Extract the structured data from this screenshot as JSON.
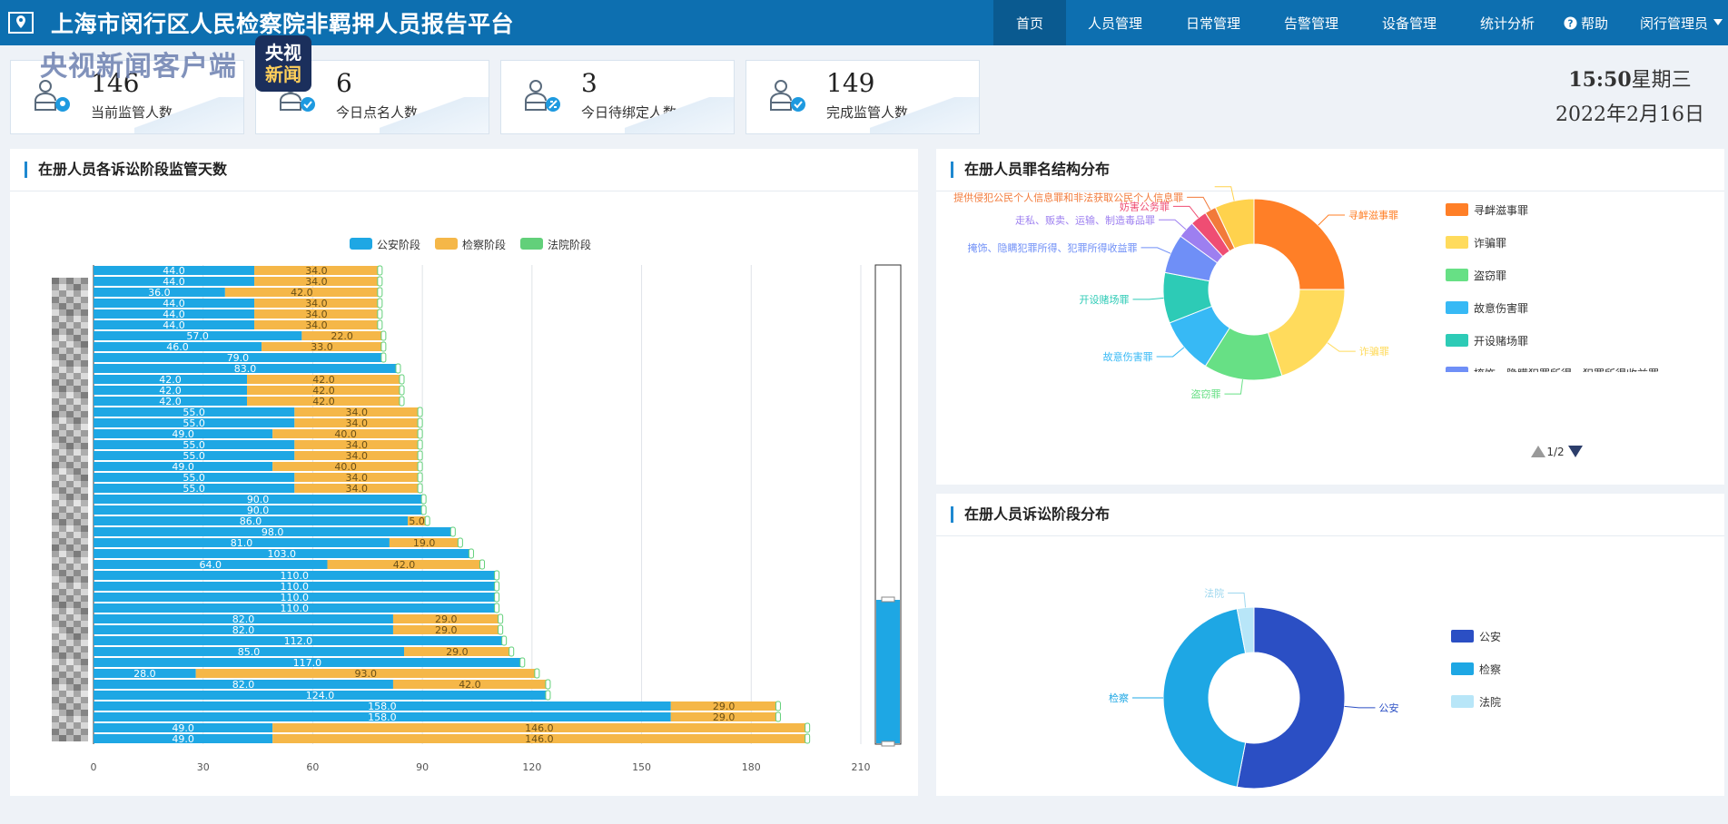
{
  "header": {
    "title": "上海市闵行区人民检察院非羁押人员报告平台",
    "nav": [
      "首页",
      "人员管理",
      "日常管理",
      "告警管理",
      "设备管理",
      "统计分析"
    ],
    "active": "首页",
    "help": "帮助",
    "user": "闵行管理员"
  },
  "watermark": {
    "text": "央视新闻客户端",
    "badge_top": "央视",
    "badge_bottom": "新闻"
  },
  "stats": [
    {
      "value": "146",
      "label": "当前监管人数",
      "icon": "people-location-icon"
    },
    {
      "value": "6",
      "label": "今日点名人数",
      "icon": "people-check-icon"
    },
    {
      "value": "3",
      "label": "今日待绑定人数",
      "icon": "people-link-icon"
    },
    {
      "value": "149",
      "label": "完成监管人数",
      "icon": "people-check-icon"
    }
  ],
  "clock": {
    "time": "15:50",
    "weekday": "星期三",
    "date": "2022年2月16日"
  },
  "panels": {
    "bar": "在册人员各诉讼阶段监管天数",
    "crime": "在册人员罪名结构分布",
    "stage": "在册人员诉讼阶段分布"
  },
  "chart_data": [
    {
      "type": "bar",
      "orientation": "horizontal",
      "stacked": true,
      "title": "在册人员各诉讼阶段监管天数",
      "legend": [
        "公安阶段",
        "检察阶段",
        "法院阶段"
      ],
      "colors": [
        "#1ea7e4",
        "#f5b748",
        "#62d07a"
      ],
      "xlim": [
        0,
        210
      ],
      "xticks": [
        0,
        30,
        60,
        90,
        120,
        150,
        180,
        210
      ],
      "category_labels_visible": false,
      "series": [
        {
          "name": "公安阶段",
          "values": [
            44,
            44,
            36,
            44,
            44,
            44,
            57,
            46,
            79,
            83,
            42,
            42,
            42,
            55,
            55,
            49,
            55,
            55,
            49,
            55,
            55,
            90,
            90,
            86,
            98,
            81,
            103,
            64,
            110,
            110,
            110,
            110,
            82,
            82,
            112,
            85,
            117,
            28,
            82,
            124,
            158,
            158,
            49,
            49
          ]
        },
        {
          "name": "检察阶段",
          "values": [
            34,
            34,
            42,
            34,
            34,
            34,
            22,
            33,
            0,
            0,
            42,
            42,
            42,
            34,
            34,
            40,
            34,
            34,
            40,
            34,
            34,
            0,
            0,
            5,
            0,
            19,
            0,
            42,
            0,
            0,
            0,
            0,
            29,
            29,
            0,
            29,
            0,
            93,
            42,
            0,
            29,
            29,
            146,
            146
          ]
        },
        {
          "name": "法院阶段",
          "values": [
            0,
            0,
            0,
            0,
            0,
            0,
            0,
            0,
            0,
            0,
            0,
            0,
            0,
            0,
            0,
            0,
            0,
            0,
            0,
            0,
            0,
            0,
            0,
            0,
            0,
            0,
            0,
            0,
            0,
            0,
            0,
            0,
            0,
            0,
            0,
            0,
            0,
            0,
            0,
            0,
            0,
            0,
            0,
            0
          ]
        }
      ]
    },
    {
      "type": "pie",
      "donut": true,
      "title": "在册人员罪名结构分布",
      "legend_page": "1/2",
      "legend_visible": [
        "寻衅滋事罪",
        "诈骗罪",
        "盗窃罪",
        "故意伤害罪",
        "开设赌场罪",
        "掩饰、隐瞒犯罪所得、犯罪所得收益罪",
        "走私、贩卖、运输、制造毒品罪"
      ],
      "slices": [
        {
          "name": "寻衅滋事罪",
          "value": 25,
          "color": "#ff7f27"
        },
        {
          "name": "诈骗罪",
          "value": 20,
          "color": "#ffdb5c"
        },
        {
          "name": "盗窃罪",
          "value": 14,
          "color": "#67e085"
        },
        {
          "name": "故意伤害罪",
          "value": 10,
          "color": "#37b9f5"
        },
        {
          "name": "开设赌场罪",
          "value": 9,
          "color": "#2dcbb6"
        },
        {
          "name": "掩饰、隐瞒犯罪所得、犯罪所得收益罪",
          "value": 7,
          "color": "#6f8ff7"
        },
        {
          "name": "走私、贩卖、运输、制造毒品罪",
          "value": 3,
          "color": "#9d7ff0"
        },
        {
          "name": "妨害公务罪",
          "value": 3,
          "color": "#ef4d73"
        },
        {
          "name": "提供侵犯公民个人信息罪和非法获取公民个人信息罪",
          "value": 2,
          "color": "#f27a3a"
        },
        {
          "name": "",
          "value": 7,
          "color": "#ffd24d"
        }
      ]
    },
    {
      "type": "pie",
      "donut": true,
      "title": "在册人员诉讼阶段分布",
      "slices": [
        {
          "name": "公安",
          "value": 53,
          "color": "#2b4fc4"
        },
        {
          "name": "检察",
          "value": 44,
          "color": "#1ea7e4"
        },
        {
          "name": "法院",
          "value": 3,
          "color": "#b8e6f8"
        }
      ]
    }
  ]
}
